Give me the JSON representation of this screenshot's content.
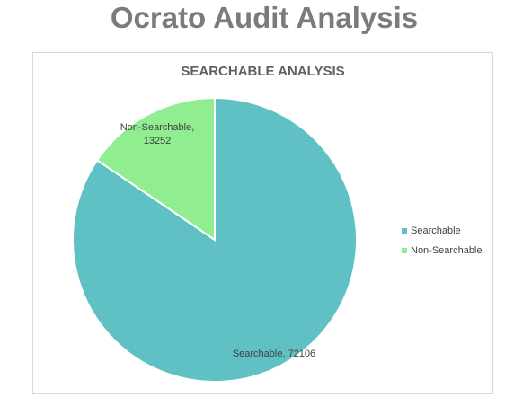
{
  "page": {
    "title": "Ocrato Audit Analysis"
  },
  "chart_data": {
    "type": "pie",
    "title": "SEARCHABLE ANALYSIS",
    "legend_position": "right",
    "slices": [
      {
        "label": "Searchable",
        "value": 72106,
        "color": "#60c1c4",
        "data_label": "Searchable, 72106"
      },
      {
        "label": "Non-Searchable",
        "value": 13252,
        "color": "#90ee90",
        "data_label_lines": [
          "Non-Searchable,",
          "13252"
        ]
      }
    ]
  }
}
